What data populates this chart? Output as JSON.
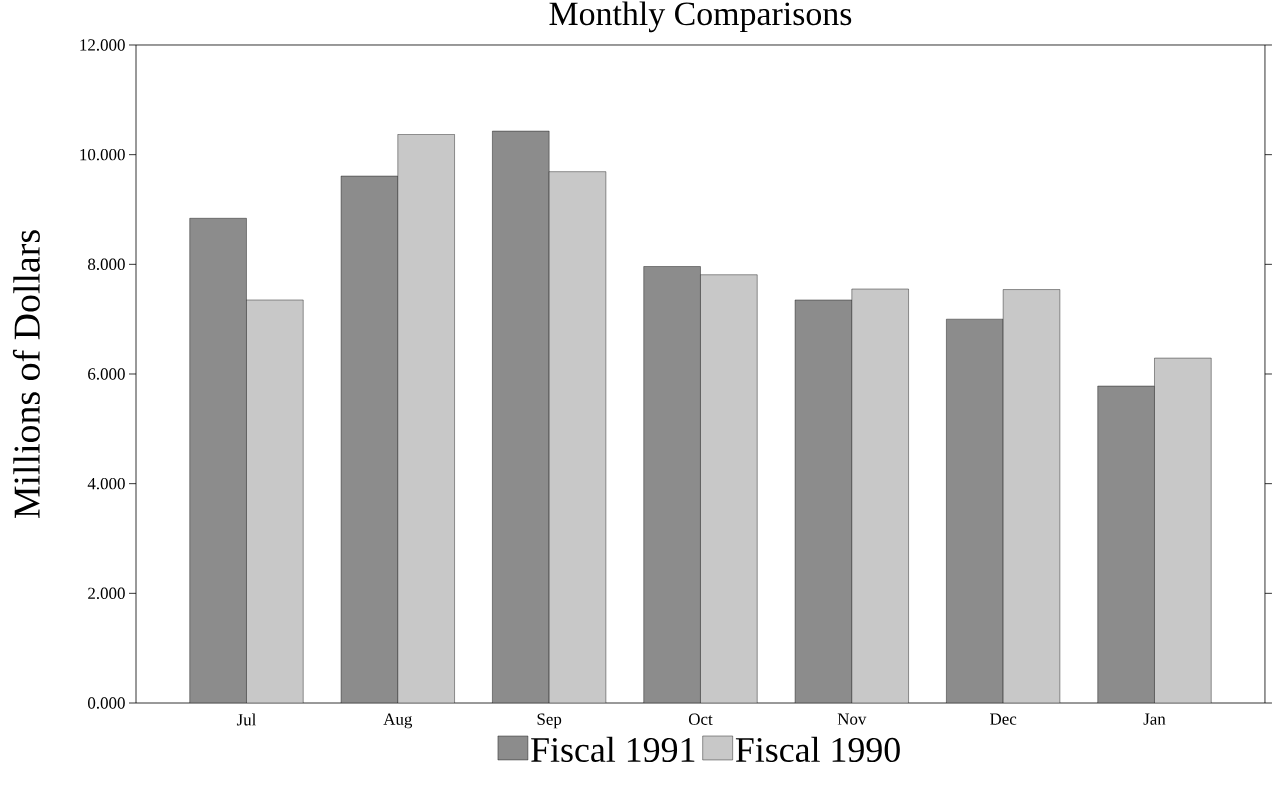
{
  "chart_data": {
    "type": "bar",
    "title": "Monthly Comparisons",
    "ylabel": "Millions of Dollars",
    "categories": [
      "Jul",
      "Aug",
      "Sep",
      "Oct",
      "Nov",
      "Dec",
      "Jan"
    ],
    "series": [
      {
        "name": "Fiscal 1991",
        "color": "#8c8c8c",
        "values": [
          8.84,
          9.61,
          10.43,
          7.96,
          7.35,
          7.0,
          5.78
        ]
      },
      {
        "name": "Fiscal 1990",
        "color": "#c8c8c8",
        "values": [
          7.35,
          10.37,
          9.69,
          7.81,
          7.55,
          7.54,
          6.29
        ]
      }
    ],
    "ylim": [
      0,
      12
    ],
    "yticks": [
      {
        "value": 0,
        "label": "0.000"
      },
      {
        "value": 2,
        "label": "2.000"
      },
      {
        "value": 4,
        "label": "4.000"
      },
      {
        "value": 6,
        "label": "6.000"
      },
      {
        "value": 8,
        "label": "8.000"
      },
      {
        "value": 10,
        "label": "10.000"
      },
      {
        "value": 12,
        "label": "12.000"
      }
    ],
    "legend": "bottom",
    "grid": false
  }
}
